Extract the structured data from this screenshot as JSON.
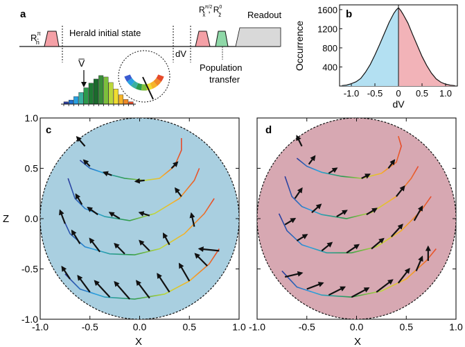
{
  "figure": {
    "panel_labels": [
      "a",
      "b",
      "c",
      "d"
    ]
  },
  "panel_a": {
    "pulse_r_pi": "R",
    "pulse_r_pi_sup": "π",
    "pulse_r_pi_sub": "n̂",
    "herald_label": "Herald initial state",
    "dv_label": "dV",
    "pulse_rx_base": "R",
    "pulse_rx_sup": "π/2",
    "pulse_rx_sub": "x̂",
    "pulse_sep": ",",
    "pulse_rz_base": "R",
    "pulse_rz_sup": "0",
    "pulse_rz_sub": "ẑ",
    "readout_label": "Readout",
    "population_line1": "Population",
    "population_line2": "transfer",
    "vbar_label": "V̅",
    "colors": {
      "red_pulse": "#f4a0a6",
      "green_pulse": "#8fd8a8",
      "readout": "#d9d9d9"
    },
    "histogram_colors": [
      "#2a3b9c",
      "#1f6fd0",
      "#29a0e0",
      "#3ab0a0",
      "#2c9a4c",
      "#1f7a34",
      "#1a6a2c",
      "#3a8e3a",
      "#7cbf3c",
      "#bcd83a",
      "#f0dc30",
      "#f6b428",
      "#f08a28",
      "#e64a2a"
    ],
    "histogram_heights": [
      0.08,
      0.14,
      0.26,
      0.4,
      0.56,
      0.72,
      0.86,
      0.98,
      0.93,
      0.74,
      0.52,
      0.32,
      0.16,
      0.08
    ],
    "arc_colors": [
      "#3a5bd0",
      "#2aa0e0",
      "#3ab0a0",
      "#2c9a4c",
      "#7cbf3c",
      "#f0dc30",
      "#f6b428",
      "#f08a28",
      "#e64a2a"
    ]
  },
  "chart_data": [
    {
      "panel": "b",
      "type": "area",
      "xlabel": "dV",
      "ylabel": "Occurrence",
      "xlim": [
        -1.25,
        1.25
      ],
      "ylim": [
        0,
        1700
      ],
      "xticks": [
        -1.0,
        -0.5,
        0,
        0.5,
        1.0
      ],
      "xtick_labels": [
        "-1.0",
        "-0.5",
        "0",
        "0.5",
        "1.0"
      ],
      "yticks": [
        400,
        800,
        1200,
        1600
      ],
      "ytick_labels": [
        "400",
        "800",
        "1200",
        "1600"
      ],
      "x": [
        -1.2,
        -1.1,
        -1.0,
        -0.9,
        -0.8,
        -0.7,
        -0.6,
        -0.5,
        -0.4,
        -0.3,
        -0.2,
        -0.1,
        -0.05,
        0,
        0.05,
        0.1,
        0.2,
        0.3,
        0.4,
        0.5,
        0.6,
        0.7,
        0.8,
        0.9,
        1.0,
        1.1,
        1.2
      ],
      "y": [
        10,
        20,
        50,
        90,
        160,
        290,
        450,
        650,
        870,
        1100,
        1330,
        1520,
        1590,
        1640,
        1580,
        1500,
        1320,
        1080,
        850,
        620,
        430,
        270,
        150,
        80,
        40,
        18,
        8
      ],
      "fill_negative": "#b3e0f2",
      "fill_positive": "#f2b3b8",
      "grid": false,
      "legend": "none"
    },
    {
      "panel": "c",
      "type": "line",
      "xlabel": "X",
      "ylabel": "Z",
      "xlim": [
        -1.0,
        1.0
      ],
      "ylim": [
        -1.0,
        1.0
      ],
      "xtick_labels": [
        "-1.0",
        "-0.5",
        "0.0",
        "0.5",
        "1.0"
      ],
      "ytick_labels": [
        "-1.0",
        "-0.5",
        "0.0",
        "0.5",
        "1.0"
      ],
      "background": "#a9cfe0",
      "series": [
        {
          "points": [
            [
              -0.6,
              0.58
            ],
            [
              -0.5,
              0.5
            ],
            [
              -0.35,
              0.45
            ],
            [
              -0.15,
              0.4
            ],
            [
              0.05,
              0.38
            ],
            [
              0.2,
              0.4
            ],
            [
              0.35,
              0.52
            ],
            [
              0.42,
              0.68
            ],
            [
              0.42,
              0.8
            ]
          ],
          "arrows": [
            [
              -0.55,
              0.72,
              -0.63,
              0.81
            ],
            [
              -0.5,
              0.52,
              -0.56,
              0.58
            ],
            [
              -0.28,
              0.43,
              -0.36,
              0.46
            ],
            [
              0.05,
              0.38,
              -0.04,
              0.37
            ],
            [
              0.32,
              0.5,
              0.38,
              0.56
            ]
          ]
        },
        {
          "points": [
            [
              -0.72,
              0.4
            ],
            [
              -0.65,
              0.2
            ],
            [
              -0.55,
              0.1
            ],
            [
              -0.35,
              0.02
            ],
            [
              -0.1,
              -0.02
            ],
            [
              0.15,
              0.05
            ],
            [
              0.4,
              0.2
            ],
            [
              0.55,
              0.38
            ],
            [
              0.6,
              0.5
            ]
          ],
          "arrows": [
            [
              -0.58,
              0.14,
              -0.64,
              0.24
            ],
            [
              -0.42,
              0.04,
              -0.52,
              0.11
            ],
            [
              -0.2,
              0.0,
              -0.3,
              0.06
            ],
            [
              0.1,
              0.03,
              0.0,
              0.06
            ],
            [
              0.42,
              0.22,
              0.36,
              0.3
            ]
          ]
        },
        {
          "points": [
            [
              -0.78,
              0.02
            ],
            [
              -0.7,
              -0.15
            ],
            [
              -0.55,
              -0.28
            ],
            [
              -0.3,
              -0.35
            ],
            [
              -0.05,
              -0.36
            ],
            [
              0.2,
              -0.3
            ],
            [
              0.45,
              -0.15
            ],
            [
              0.65,
              0.05
            ],
            [
              0.75,
              0.2
            ]
          ],
          "arrows": [
            [
              -0.75,
              -0.05,
              -0.8,
              0.08
            ],
            [
              -0.6,
              -0.25,
              -0.68,
              -0.12
            ],
            [
              -0.4,
              -0.33,
              -0.5,
              -0.2
            ],
            [
              -0.15,
              -0.35,
              -0.25,
              -0.25
            ],
            [
              0.1,
              -0.32,
              0.0,
              -0.22
            ],
            [
              0.3,
              -0.26,
              0.24,
              -0.15
            ],
            [
              0.55,
              -0.08,
              0.52,
              0.05
            ]
          ]
        },
        {
          "points": [
            [
              -0.75,
              -0.55
            ],
            [
              -0.6,
              -0.7
            ],
            [
              -0.35,
              -0.78
            ],
            [
              -0.05,
              -0.8
            ],
            [
              0.25,
              -0.75
            ],
            [
              0.5,
              -0.62
            ],
            [
              0.7,
              -0.45
            ],
            [
              0.8,
              -0.3
            ]
          ],
          "arrows": [
            [
              -0.7,
              -0.6,
              -0.78,
              -0.48
            ],
            [
              -0.5,
              -0.73,
              -0.62,
              -0.57
            ],
            [
              -0.3,
              -0.78,
              -0.45,
              -0.62
            ],
            [
              -0.1,
              -0.8,
              -0.25,
              -0.63
            ],
            [
              0.1,
              -0.79,
              -0.03,
              -0.62
            ],
            [
              0.3,
              -0.73,
              0.18,
              -0.55
            ],
            [
              0.5,
              -0.62,
              0.4,
              -0.45
            ],
            [
              0.68,
              -0.47,
              0.56,
              -0.35
            ],
            [
              0.8,
              -0.32,
              0.6,
              -0.3
            ]
          ]
        }
      ]
    },
    {
      "panel": "d",
      "type": "line",
      "xlabel": "X",
      "ylabel": "Z",
      "xlim": [
        -1.0,
        1.0
      ],
      "ylim": [
        -1.0,
        1.0
      ],
      "xtick_labels": [
        "-1.0",
        "-0.5",
        "0.0",
        "0.5",
        "1.0"
      ],
      "ytick_labels": [],
      "background": "#d7a8b2",
      "series": [
        {
          "points": [
            [
              -0.6,
              0.6
            ],
            [
              -0.5,
              0.52
            ],
            [
              -0.35,
              0.46
            ],
            [
              -0.15,
              0.42
            ],
            [
              0.05,
              0.4
            ],
            [
              0.25,
              0.45
            ],
            [
              0.4,
              0.56
            ],
            [
              0.45,
              0.72
            ],
            [
              0.42,
              0.82
            ]
          ],
          "arrows": [
            [
              -0.55,
              0.72,
              -0.6,
              0.82
            ],
            [
              -0.48,
              0.54,
              -0.42,
              0.62
            ],
            [
              -0.28,
              0.45,
              -0.2,
              0.5
            ],
            [
              0.05,
              0.4,
              0.13,
              0.44
            ],
            [
              0.32,
              0.5,
              0.38,
              0.58
            ]
          ]
        },
        {
          "points": [
            [
              -0.72,
              0.42
            ],
            [
              -0.65,
              0.22
            ],
            [
              -0.55,
              0.12
            ],
            [
              -0.35,
              0.04
            ],
            [
              -0.1,
              0.0
            ],
            [
              0.15,
              0.06
            ],
            [
              0.4,
              0.22
            ],
            [
              0.55,
              0.4
            ],
            [
              0.62,
              0.52
            ]
          ],
          "arrows": [
            [
              -0.62,
              0.2,
              -0.55,
              0.3
            ],
            [
              -0.45,
              0.06,
              -0.36,
              0.14
            ],
            [
              -0.2,
              0.02,
              -0.1,
              0.08
            ],
            [
              0.1,
              0.04,
              0.2,
              0.1
            ],
            [
              0.4,
              0.22,
              0.48,
              0.32
            ]
          ]
        },
        {
          "points": [
            [
              -0.78,
              0.05
            ],
            [
              -0.7,
              -0.12
            ],
            [
              -0.55,
              -0.26
            ],
            [
              -0.3,
              -0.34
            ],
            [
              -0.05,
              -0.34
            ],
            [
              0.2,
              -0.28
            ],
            [
              0.45,
              -0.12
            ],
            [
              0.65,
              0.08
            ],
            [
              0.75,
              0.22
            ]
          ],
          "arrows": [
            [
              -0.72,
              -0.06,
              -0.62,
              0.0
            ],
            [
              -0.6,
              -0.22,
              -0.5,
              -0.16
            ],
            [
              -0.35,
              -0.32,
              -0.25,
              -0.24
            ],
            [
              -0.1,
              -0.34,
              0.02,
              -0.26
            ],
            [
              0.15,
              -0.3,
              0.27,
              -0.2
            ],
            [
              0.35,
              -0.18,
              0.46,
              -0.06
            ],
            [
              0.58,
              -0.02,
              0.66,
              0.12
            ]
          ]
        },
        {
          "points": [
            [
              -0.75,
              -0.52
            ],
            [
              -0.6,
              -0.68
            ],
            [
              -0.35,
              -0.76
            ],
            [
              -0.05,
              -0.78
            ],
            [
              0.25,
              -0.72
            ],
            [
              0.5,
              -0.6
            ],
            [
              0.7,
              -0.42
            ],
            [
              0.8,
              -0.3
            ]
          ],
          "arrows": [
            [
              -0.72,
              -0.58,
              -0.55,
              -0.54
            ],
            [
              -0.5,
              -0.7,
              -0.34,
              -0.64
            ],
            [
              -0.28,
              -0.76,
              -0.12,
              -0.68
            ],
            [
              -0.05,
              -0.78,
              0.12,
              -0.69
            ],
            [
              0.2,
              -0.73,
              0.36,
              -0.61
            ],
            [
              0.42,
              -0.64,
              0.53,
              -0.5
            ],
            [
              0.6,
              -0.52,
              0.66,
              -0.38
            ],
            [
              0.72,
              -0.42,
              0.72,
              -0.28
            ]
          ]
        }
      ]
    }
  ]
}
